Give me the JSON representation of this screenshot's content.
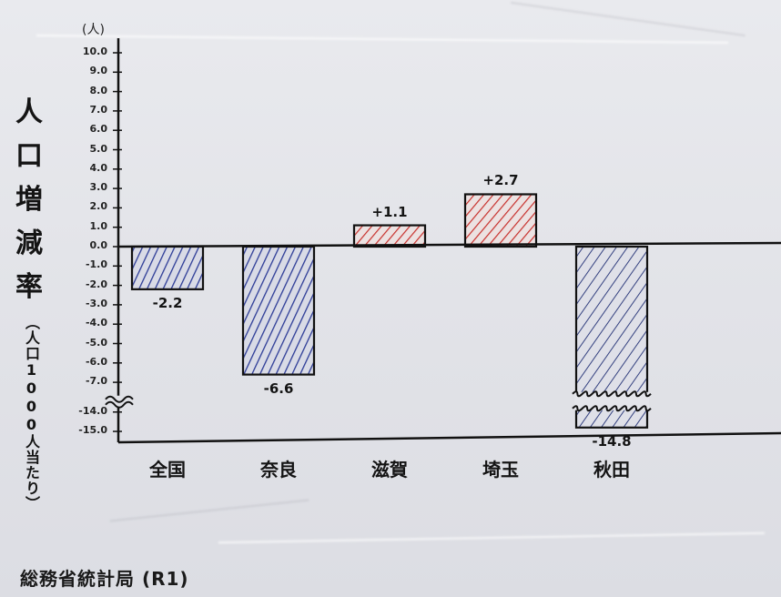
{
  "chart_data": {
    "type": "bar",
    "title": "",
    "ylabel_main": "人口増減率",
    "ylabel_sub": "（人口1000人当たり）",
    "unit": "(人)",
    "categories": [
      "全国",
      "奈良",
      "滋賀",
      "埼玉",
      "秋田"
    ],
    "values": [
      -2.2,
      -6.6,
      1.1,
      2.7,
      -14.8
    ],
    "value_labels": [
      "-2.2",
      "-6.6",
      "+1.1",
      "+2.7",
      "-14.8"
    ],
    "ytick_labels": [
      "10.0",
      "9.0",
      "8.0",
      "7.0",
      "6.0",
      "5.0",
      "4.0",
      "3.0",
      "2.0",
      "1.0",
      "0.0",
      "-1.0",
      "-2.0",
      "-3.0",
      "-4.0",
      "-5.0",
      "-6.0",
      "-7.0",
      "-14.0",
      "-15.0"
    ],
    "ylim": [
      -15,
      10
    ],
    "axis_break": [
      -7.5,
      -14
    ],
    "colors": {
      "positive": "#d0322e",
      "negative": "#2b3a96",
      "axis": "#111111"
    },
    "grid": false
  },
  "source": "総務省統計局 (R1)"
}
